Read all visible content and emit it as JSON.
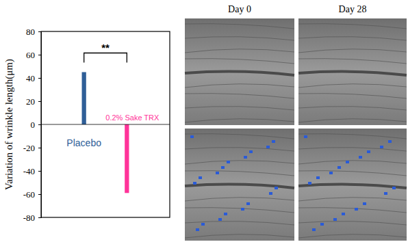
{
  "chart_data": {
    "type": "bar",
    "y_label": "Variation of wrinkle length(μm)",
    "categories": [
      "Placebo",
      "0.2% Sake TRX"
    ],
    "values": [
      45,
      -59
    ],
    "colors": [
      "#2e5e97",
      "#ff3399"
    ],
    "ylim": [
      -80,
      80
    ],
    "yticks": [
      -80,
      -60,
      -40,
      -20,
      0,
      20,
      40,
      60,
      80
    ],
    "annotations": [
      "**"
    ]
  },
  "images": {
    "column_titles": [
      "Day 0",
      "Day 28"
    ]
  }
}
